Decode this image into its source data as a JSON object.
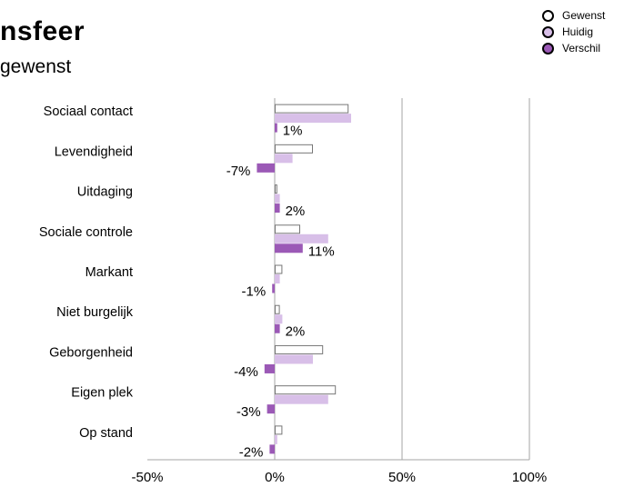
{
  "header": {
    "title": "nsfeer",
    "subtitle": "gewenst"
  },
  "legend": {
    "items": [
      {
        "label": "Gewenst",
        "color": "#ffffff"
      },
      {
        "label": "Huidig",
        "color": "#d8bfe8"
      },
      {
        "label": "Verschil",
        "color": "#9b59b6"
      }
    ]
  },
  "chart_data": {
    "type": "bar",
    "orientation": "horizontal",
    "title": "",
    "xlabel": "",
    "ylabel": "",
    "xlim": [
      -50,
      100
    ],
    "x_ticks": [
      -50,
      0,
      50,
      100
    ],
    "x_tick_labels": [
      "-50%",
      "0%",
      "50%",
      "100%"
    ],
    "grid": true,
    "legend_position": "top-right",
    "categories": [
      "Sociaal contact",
      "Levendigheid",
      "Uitdaging",
      "Sociale controle",
      "Markant",
      "Niet burgelijk",
      "Geborgenheid",
      "Eigen plek",
      "Op stand"
    ],
    "series": [
      {
        "name": "Gewenst",
        "color": "#ffffff",
        "stroke": "#777777",
        "values": [
          29,
          15,
          1,
          10,
          3,
          2,
          19,
          24,
          3
        ]
      },
      {
        "name": "Huidig",
        "color": "#d8bfe8",
        "stroke": "#d8bfe8",
        "values": [
          30,
          7,
          2,
          21,
          2,
          3,
          15,
          21,
          1
        ]
      },
      {
        "name": "Verschil",
        "color": "#9b59b6",
        "stroke": "#9b59b6",
        "values": [
          1,
          -7,
          2,
          11,
          -1,
          2,
          -4,
          -3,
          -2
        ]
      }
    ],
    "data_labels": [
      "1%",
      "-7%",
      "2%",
      "11%",
      "-1%",
      "2%",
      "-4%",
      "-3%",
      "-2%"
    ]
  }
}
